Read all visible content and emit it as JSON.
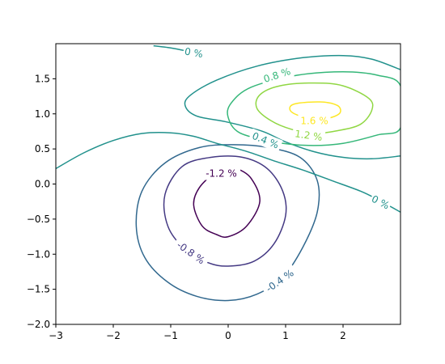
{
  "chart_data": {
    "type": "contour",
    "title": "",
    "xlabel": "",
    "ylabel": "",
    "xlim": [
      -3,
      3
    ],
    "ylim": [
      -2,
      2
    ],
    "x_ticks": [
      -3,
      -2,
      -1,
      0,
      1,
      2
    ],
    "x_tick_labels": [
      "−3",
      "−2",
      "−1",
      "0",
      "1",
      "2"
    ],
    "y_ticks": [
      -2.0,
      -1.5,
      -1.0,
      -0.5,
      0.0,
      0.5,
      1.0,
      1.5
    ],
    "y_tick_labels": [
      "−2.0",
      "−1.5",
      "−1.0",
      "−0.5",
      "0.0",
      "0.5",
      "1.0",
      "1.5"
    ],
    "grid": false,
    "colormap": "viridis",
    "levels": [
      {
        "value": -1.2,
        "label": "-1.2 %",
        "color": "#440154"
      },
      {
        "value": -0.8,
        "label": "-0.8 %",
        "color": "#443983"
      },
      {
        "value": -0.4,
        "label": "-0.4 %",
        "color": "#31688e"
      },
      {
        "value": 0.0,
        "label": "0 %",
        "color": "#21918c"
      },
      {
        "value": 0.4,
        "label": "0.4 %",
        "color": "#21918c"
      },
      {
        "value": 0.8,
        "label": "0.8 %",
        "color": "#35b779"
      },
      {
        "value": 1.2,
        "label": "1.2 %",
        "color": "#90d743"
      },
      {
        "value": 1.6,
        "label": "1.6 %",
        "color": "#fde725"
      }
    ],
    "contours": [
      {
        "level": -1.2,
        "closed": true,
        "points": [
          [
            0,
            -0.75
          ],
          [
            0.32,
            -0.6
          ],
          [
            0.55,
            -0.25
          ],
          [
            0.4,
            0.08
          ],
          [
            0.15,
            0.22
          ],
          [
            0,
            0.22
          ],
          [
            -0.2,
            0.18
          ],
          [
            -0.5,
            -0.05
          ],
          [
            -0.6,
            -0.3
          ],
          [
            -0.45,
            -0.6
          ],
          [
            -0.2,
            -0.72
          ]
        ]
      },
      {
        "level": -0.8,
        "closed": true,
        "points": [
          [
            0,
            -1.17
          ],
          [
            0.45,
            -1.1
          ],
          [
            0.8,
            -0.85
          ],
          [
            1.0,
            -0.45
          ],
          [
            0.95,
            -0.1
          ],
          [
            0.68,
            0.22
          ],
          [
            0.25,
            0.38
          ],
          [
            -0.3,
            0.38
          ],
          [
            -0.8,
            0.25
          ],
          [
            -1.1,
            -0.15
          ],
          [
            -1.05,
            -0.6
          ],
          [
            -0.75,
            -0.93
          ],
          [
            -0.35,
            -1.12
          ]
        ]
      },
      {
        "level": -0.4,
        "closed": true,
        "points": [
          [
            0,
            -1.66
          ],
          [
            0.5,
            -1.57
          ],
          [
            0.95,
            -1.33
          ],
          [
            1.3,
            -0.9
          ],
          [
            1.55,
            -0.4
          ],
          [
            1.55,
            0.05
          ],
          [
            1.25,
            0.38
          ],
          [
            0.7,
            0.52
          ],
          [
            0.1,
            0.56
          ],
          [
            -0.5,
            0.52
          ],
          [
            -1.1,
            0.3
          ],
          [
            -1.5,
            -0.1
          ],
          [
            -1.6,
            -0.6
          ],
          [
            -1.45,
            -1.05
          ],
          [
            -1.05,
            -1.4
          ],
          [
            -0.55,
            -1.6
          ]
        ]
      },
      {
        "level": 0.0,
        "closed": false,
        "points": [
          [
            -3,
            0.22
          ],
          [
            -2.5,
            0.45
          ],
          [
            -2.0,
            0.62
          ],
          [
            -1.5,
            0.72
          ],
          [
            -1.0,
            0.73
          ],
          [
            -0.6,
            0.68
          ],
          [
            -0.2,
            0.58
          ],
          [
            0.3,
            0.47
          ],
          [
            0.8,
            0.33
          ],
          [
            1.3,
            0.2
          ],
          [
            1.8,
            0.05
          ],
          [
            2.3,
            -0.1
          ],
          [
            2.6,
            -0.22
          ],
          [
            3.0,
            -0.4
          ]
        ]
      },
      {
        "level": 0.0,
        "closed": false,
        "points": [
          [
            -1.3,
            1.97
          ],
          [
            -1.0,
            1.94
          ],
          [
            -0.75,
            1.9
          ],
          [
            -0.55,
            1.86
          ]
        ]
      },
      {
        "level": 0.4,
        "closed": false,
        "points": [
          [
            3.0,
            1.63
          ],
          [
            2.5,
            1.78
          ],
          [
            2.0,
            1.83
          ],
          [
            1.3,
            1.8
          ],
          [
            0.5,
            1.68
          ],
          [
            -0.2,
            1.48
          ],
          [
            -0.65,
            1.27
          ],
          [
            -0.75,
            1.12
          ],
          [
            -0.55,
            0.97
          ],
          [
            0.0,
            0.88
          ],
          [
            0.6,
            0.75
          ],
          [
            1.0,
            0.6
          ],
          [
            1.5,
            0.46
          ],
          [
            2.0,
            0.38
          ],
          [
            2.5,
            0.36
          ],
          [
            3.0,
            0.4
          ]
        ]
      },
      {
        "level": 0.8,
        "closed": true,
        "points": [
          [
            1.2,
            1.55
          ],
          [
            2.0,
            1.6
          ],
          [
            2.6,
            1.55
          ],
          [
            3.0,
            1.4
          ],
          [
            3.0,
            0.8
          ],
          [
            2.6,
            0.7
          ],
          [
            2.0,
            0.58
          ],
          [
            1.4,
            0.55
          ],
          [
            0.8,
            0.6
          ],
          [
            0.2,
            0.73
          ],
          [
            0.0,
            0.95
          ],
          [
            0.05,
            1.15
          ],
          [
            0.4,
            1.38
          ]
        ]
      },
      {
        "level": 1.2,
        "closed": true,
        "points": [
          [
            1.5,
            1.44
          ],
          [
            2.0,
            1.4
          ],
          [
            2.45,
            1.22
          ],
          [
            2.5,
            1.05
          ],
          [
            2.3,
            0.85
          ],
          [
            1.9,
            0.76
          ],
          [
            1.5,
            0.72
          ],
          [
            1.1,
            0.78
          ],
          [
            0.75,
            0.9
          ],
          [
            0.5,
            1.08
          ],
          [
            0.55,
            1.27
          ],
          [
            0.9,
            1.4
          ]
        ]
      },
      {
        "level": 1.6,
        "closed": true,
        "points": [
          [
            1.6,
            1.17
          ],
          [
            1.9,
            1.12
          ],
          [
            1.95,
            1.02
          ],
          [
            1.8,
            0.95
          ],
          [
            1.55,
            0.92
          ],
          [
            1.25,
            0.97
          ],
          [
            1.08,
            1.05
          ],
          [
            1.15,
            1.14
          ]
        ]
      }
    ],
    "labels": [
      {
        "level": -1.2,
        "text": "-1.2 %",
        "x": -0.12,
        "y": 0.15,
        "rotation": 0
      },
      {
        "level": -0.8,
        "text": "-0.8 %",
        "x": -0.65,
        "y": -0.98,
        "rotation": 35
      },
      {
        "level": -0.4,
        "text": "-0.4 %",
        "x": 0.9,
        "y": -1.38,
        "rotation": -35
      },
      {
        "level": 0.0,
        "text": "0 %",
        "x": 2.65,
        "y": -0.26,
        "rotation": 27
      },
      {
        "level": 0.0,
        "text": "0 %",
        "x": -0.6,
        "y": 1.87,
        "rotation": 10
      },
      {
        "level": 0.4,
        "text": "0.4 %",
        "x": 0.65,
        "y": 0.62,
        "rotation": 22
      },
      {
        "level": 0.8,
        "text": "0.8 %",
        "x": 0.85,
        "y": 1.55,
        "rotation": -18
      },
      {
        "level": 1.2,
        "text": "1.2 %",
        "x": 1.4,
        "y": 0.69,
        "rotation": 8
      },
      {
        "level": 1.6,
        "text": "1.6 %",
        "x": 1.5,
        "y": 0.9,
        "rotation": 0
      }
    ]
  }
}
